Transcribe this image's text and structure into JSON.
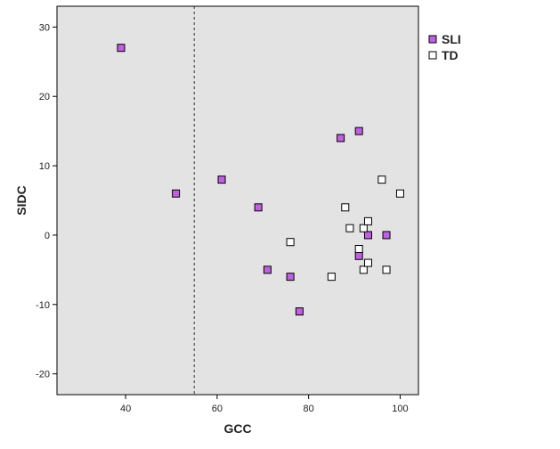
{
  "chart_data": {
    "type": "scatter",
    "xlabel": "GCC",
    "ylabel": "SIDC",
    "xlim": [
      25,
      104
    ],
    "ylim": [
      -23,
      33
    ],
    "xticks": [
      40,
      60,
      80,
      100
    ],
    "yticks": [
      -20,
      -10,
      0,
      10,
      20,
      30
    ],
    "grid": false,
    "legend_position": "right",
    "reference_line": {
      "axis": "x",
      "value": 55,
      "style": "dashed"
    },
    "plot_background": "#e3e3e3",
    "series": [
      {
        "name": "SLI",
        "color": "#c060e0",
        "marker": "square",
        "points": [
          [
            39,
            27
          ],
          [
            51,
            6
          ],
          [
            61,
            8
          ],
          [
            69,
            4
          ],
          [
            71,
            -5
          ],
          [
            76,
            -6
          ],
          [
            78,
            -11
          ],
          [
            87,
            14
          ],
          [
            91,
            15
          ],
          [
            91,
            -3
          ],
          [
            93,
            0
          ],
          [
            97,
            0
          ]
        ]
      },
      {
        "name": "TD",
        "color": "#ffffff",
        "marker": "square",
        "points": [
          [
            76,
            -1
          ],
          [
            85,
            -6
          ],
          [
            88,
            4
          ],
          [
            89,
            1
          ],
          [
            91,
            -2
          ],
          [
            92,
            1
          ],
          [
            92,
            -5
          ],
          [
            93,
            2
          ],
          [
            93,
            -4
          ],
          [
            96,
            8
          ],
          [
            97,
            -5
          ],
          [
            100,
            6
          ]
        ]
      }
    ]
  }
}
